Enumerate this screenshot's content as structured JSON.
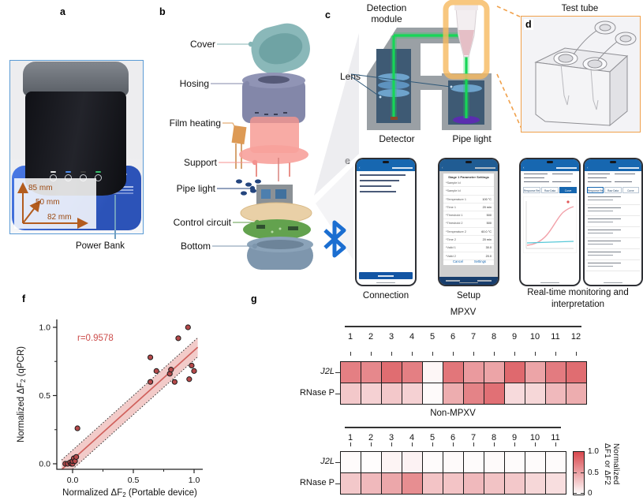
{
  "panel_letters": {
    "a": "a",
    "b": "b",
    "c": "c",
    "d": "d",
    "e": "e",
    "f": "f",
    "g": "g"
  },
  "panel_a": {
    "dim_height": "85 mm",
    "dim_depth": "50 mm",
    "dim_width": "82 mm",
    "power_bank_label": "Power Bank",
    "led_colors": [
      "#e8e8e8",
      "#4d8df0",
      "#3a3a3a",
      "#35c06a"
    ],
    "arrow_color": "#b35c1e",
    "border_color": "#5b9bd5"
  },
  "panel_b": {
    "items": [
      {
        "label": "Cover",
        "color": "#85b5b6"
      },
      {
        "label": "Hosing",
        "color": "#8387a9"
      },
      {
        "label": "Film heating",
        "color": "#dd9a55"
      },
      {
        "label": "Support",
        "color": "#f4928f"
      },
      {
        "label": "Pipe light",
        "color": "#24457e"
      },
      {
        "label": "Control circuit",
        "color": "#5f9e4a"
      },
      {
        "label": "Bottom",
        "color": "#7c95ac"
      }
    ],
    "bluetooth_color": "#1b6ed1"
  },
  "panel_c": {
    "title_line1": "Detection",
    "title_line2": "module",
    "lens_label": "Lens",
    "detector_label": "Detector",
    "pipe_light_label": "Pipe light",
    "beam_color": "#17d657",
    "holder_color": "#f6b95f"
  },
  "panel_d": {
    "title": "Test tube",
    "border_color": "#f0a04a"
  },
  "panel_e": {
    "captions": {
      "phone1": "Connection",
      "phone2": "Setup",
      "monitoring_line1": "Real-time monitoring and",
      "monitoring_line2": "interpretation"
    },
    "setup_dialog": {
      "title": "Stage 1 Parameter Settings",
      "rows": [
        {
          "label": "*Sample Id",
          "value": ""
        },
        {
          "label": "*Sample Id",
          "value": ""
        },
        {
          "label": "*Temperature 1",
          "value": "100 °C"
        },
        {
          "label": "*Time 1",
          "value": "20 min"
        },
        {
          "label": "*Threshold 1",
          "value": "500"
        },
        {
          "label": "*Threshold 2",
          "value": "500"
        },
        {
          "label": "*Temperature 2",
          "value": "60.0 °C"
        },
        {
          "label": "*Time 2",
          "value": "20 min"
        },
        {
          "label": "*Valid 1",
          "value": "30.0"
        },
        {
          "label": "*Valid 2",
          "value": "20.0"
        }
      ],
      "buttons": [
        "Cancel",
        "Settings"
      ]
    },
    "result_tabs": [
      "Response Result",
      "Raw Data",
      "Curve"
    ],
    "phone3_active_tab": "Curve",
    "phone4_active_tab": "Response Result"
  },
  "chart_data": [
    {
      "type": "scatter",
      "annotation": "r=0.9578",
      "xlabel_prefix": "Normalized ΔF",
      "xlabel_sub": "2",
      "xlabel_suffix": " (Portable device)",
      "ylabel_prefix": "Normalized ΔF",
      "ylabel_sub": "2",
      "ylabel_suffix": " (qPCR)",
      "xticks": [
        0.0,
        0.5,
        1.0
      ],
      "yticks": [
        0.0,
        0.5,
        1.0
      ],
      "xtick_labels": [
        "0.0",
        "0.5",
        "1.0"
      ],
      "ytick_labels": [
        "0.0",
        "0.5",
        "1.0"
      ],
      "xlim": [
        -0.13,
        1.07
      ],
      "ylim": [
        -0.04,
        1.06
      ],
      "minor_ticks": [
        0.25,
        0.75
      ],
      "points": [
        [
          -0.06,
          0.0
        ],
        [
          -0.04,
          0.0
        ],
        [
          -0.02,
          0.01
        ],
        [
          -0.01,
          0.0
        ],
        [
          0.0,
          0.0
        ],
        [
          0.0,
          0.02
        ],
        [
          0.01,
          0.04
        ],
        [
          0.02,
          0.02
        ],
        [
          0.03,
          0.05
        ],
        [
          0.04,
          0.26
        ],
        [
          0.64,
          0.6
        ],
        [
          0.64,
          0.78
        ],
        [
          0.69,
          0.68
        ],
        [
          0.8,
          0.66
        ],
        [
          0.81,
          0.69
        ],
        [
          0.84,
          0.6
        ],
        [
          0.87,
          0.92
        ],
        [
          0.95,
          1.0
        ],
        [
          0.96,
          0.62
        ],
        [
          0.98,
          0.72
        ],
        [
          1.0,
          0.68
        ]
      ],
      "fit": {
        "slope": 0.8,
        "intercept": 0.03,
        "band_upper_intercept": 0.1,
        "band_lower_intercept": -0.04,
        "x_start": -0.09,
        "x_end": 1.03
      },
      "colors": {
        "point_fill": "#b5494a",
        "point_stroke": "#1c1c1c",
        "line": "#d0605c",
        "band": "#f0c2bf",
        "annotation": "#cc4c4a"
      }
    },
    {
      "type": "heatmap",
      "title": "MPXV",
      "columns": [
        "1",
        "2",
        "3",
        "4",
        "5",
        "6",
        "7",
        "8",
        "9",
        "10",
        "11",
        "12"
      ],
      "rows": [
        {
          "label": "J2L",
          "italic": true
        },
        {
          "label": "RNase P",
          "italic": false
        }
      ],
      "values": [
        [
          0.7,
          0.65,
          0.8,
          0.7,
          0.05,
          0.75,
          0.55,
          0.5,
          0.82,
          0.5,
          0.72,
          0.8
        ],
        [
          0.3,
          0.25,
          0.3,
          0.25,
          0.03,
          0.45,
          0.68,
          0.78,
          0.2,
          0.22,
          0.38,
          0.45
        ]
      ]
    },
    {
      "type": "heatmap",
      "title": "Non-MPXV",
      "columns": [
        "1",
        "2",
        "3",
        "4",
        "5",
        "6",
        "7",
        "8",
        "9",
        "10",
        "11"
      ],
      "rows": [
        {
          "label": "J2L",
          "italic": true
        },
        {
          "label": "RNase P",
          "italic": false
        }
      ],
      "values": [
        [
          0.02,
          0.01,
          0.06,
          0.07,
          0.02,
          0.03,
          0.02,
          0.03,
          0.02,
          0.02,
          0.02
        ],
        [
          0.3,
          0.38,
          0.48,
          0.62,
          0.32,
          0.32,
          0.38,
          0.33,
          0.3,
          0.22,
          0.18
        ]
      ]
    }
  ],
  "colorbar": {
    "lines": [
      "Normalized",
      "ΔF1 or ΔF2"
    ],
    "ticks": [
      "1.0",
      "0.5",
      "0"
    ],
    "max_color": "#d8484e"
  }
}
